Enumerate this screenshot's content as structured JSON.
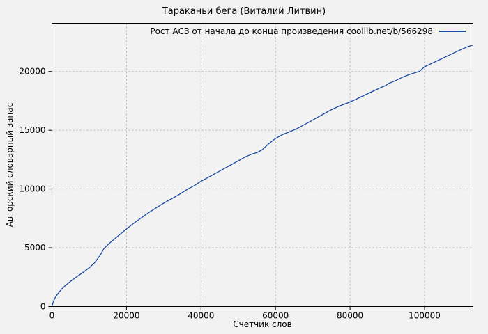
{
  "page": {
    "background": "#f2f2f2"
  },
  "chart_data": {
    "type": "line",
    "title": "Тараканьи бега (Виталий Литвин)",
    "xlabel": "Счетчик слов",
    "ylabel": "Авторский словарный запас",
    "legend": {
      "label": "Рост АСЗ от начала до конца произведения coollib.net/b/566298",
      "position": "top-right-inside"
    },
    "grid": true,
    "colors": {
      "line": "#1b4aa2",
      "grid": "#b0b0b0",
      "border": "#000000",
      "text": "#000000",
      "background": "#f2f2f2"
    },
    "xlim": [
      0,
      113000
    ],
    "ylim": [
      0,
      24100
    ],
    "xticks": [
      0,
      20000,
      40000,
      60000,
      80000,
      100000
    ],
    "yticks": [
      0,
      5000,
      10000,
      15000,
      20000
    ],
    "series": [
      {
        "name": "Рост АСЗ от начала до конца произведения coollib.net/b/566298",
        "points": [
          [
            0,
            0
          ],
          [
            400,
            450
          ],
          [
            800,
            720
          ],
          [
            1500,
            1050
          ],
          [
            2500,
            1450
          ],
          [
            3500,
            1750
          ],
          [
            5000,
            2150
          ],
          [
            6500,
            2500
          ],
          [
            8000,
            2830
          ],
          [
            10000,
            3300
          ],
          [
            11500,
            3750
          ],
          [
            13000,
            4400
          ],
          [
            14000,
            4950
          ],
          [
            15500,
            5400
          ],
          [
            17000,
            5800
          ],
          [
            18500,
            6200
          ],
          [
            20000,
            6600
          ],
          [
            22000,
            7100
          ],
          [
            24000,
            7550
          ],
          [
            26000,
            8000
          ],
          [
            28000,
            8400
          ],
          [
            30000,
            8800
          ],
          [
            32000,
            9150
          ],
          [
            34000,
            9500
          ],
          [
            36500,
            10000
          ],
          [
            38000,
            10250
          ],
          [
            40000,
            10650
          ],
          [
            42000,
            11000
          ],
          [
            44000,
            11350
          ],
          [
            46000,
            11700
          ],
          [
            48000,
            12050
          ],
          [
            50000,
            12400
          ],
          [
            52000,
            12750
          ],
          [
            53500,
            12950
          ],
          [
            55000,
            13100
          ],
          [
            56500,
            13350
          ],
          [
            58000,
            13800
          ],
          [
            60000,
            14300
          ],
          [
            62000,
            14650
          ],
          [
            64000,
            14900
          ],
          [
            65500,
            15100
          ],
          [
            67000,
            15350
          ],
          [
            69000,
            15700
          ],
          [
            71000,
            16050
          ],
          [
            73000,
            16400
          ],
          [
            75000,
            16750
          ],
          [
            77000,
            17050
          ],
          [
            80000,
            17400
          ],
          [
            82000,
            17700
          ],
          [
            84000,
            18000
          ],
          [
            86000,
            18300
          ],
          [
            88000,
            18600
          ],
          [
            89500,
            18800
          ],
          [
            90500,
            19000
          ],
          [
            92000,
            19200
          ],
          [
            94000,
            19500
          ],
          [
            96000,
            19750
          ],
          [
            98000,
            19950
          ],
          [
            98600,
            20000
          ],
          [
            100000,
            20400
          ],
          [
            102000,
            20700
          ],
          [
            104000,
            21000
          ],
          [
            106000,
            21300
          ],
          [
            108000,
            21600
          ],
          [
            110000,
            21900
          ],
          [
            111500,
            22100
          ],
          [
            113000,
            22250
          ]
        ]
      }
    ]
  }
}
